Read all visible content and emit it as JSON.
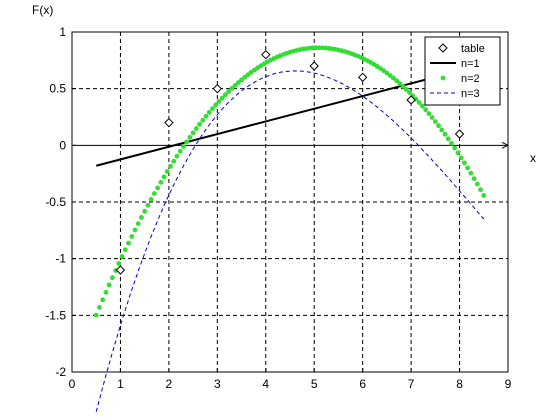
{
  "chart_data": {
    "type": "line",
    "title": "",
    "xlabel": "x",
    "ylabel": "F(x)",
    "xlim": [
      0,
      9
    ],
    "ylim": [
      -2,
      1
    ],
    "x_ticks": [
      "0",
      "1",
      "2",
      "3",
      "4",
      "5",
      "6",
      "7",
      "8",
      "9"
    ],
    "y_ticks": [
      "-2",
      "-1.5",
      "-1",
      "-0.5",
      "0",
      "0.5",
      "1"
    ],
    "grid": true,
    "legend_position": "top-right",
    "colors": {
      "table": "#000000",
      "n1": "#000000",
      "n2": "#33dd33",
      "n3": "#0000dd",
      "grid": "#000000",
      "axes": "#000000"
    },
    "series": [
      {
        "name": "table",
        "style": "diamond-markers",
        "x": [
          1,
          2,
          3,
          4,
          5,
          6,
          7,
          8
        ],
        "y": [
          -1.1,
          0.2,
          0.5,
          0.8,
          0.7,
          0.6,
          0.4,
          0.1
        ]
      },
      {
        "name": "n=1",
        "style": "solid-line",
        "x": [
          0.5,
          7.3
        ],
        "y": [
          -0.18,
          0.58
        ]
      },
      {
        "name": "n=2",
        "style": "green-dots",
        "x_range": [
          0.5,
          8.5
        ],
        "coefficients": [
          -2.04,
          1.14,
          -0.112
        ]
      },
      {
        "name": "n=3",
        "style": "dashed-line",
        "x_range": [
          0.5,
          8.5
        ],
        "coefficients": [
          -3.25,
          1.94,
          -0.29,
          0.0115
        ]
      }
    ],
    "legend": [
      "table",
      "n=1",
      "n=2",
      "n=3"
    ]
  }
}
